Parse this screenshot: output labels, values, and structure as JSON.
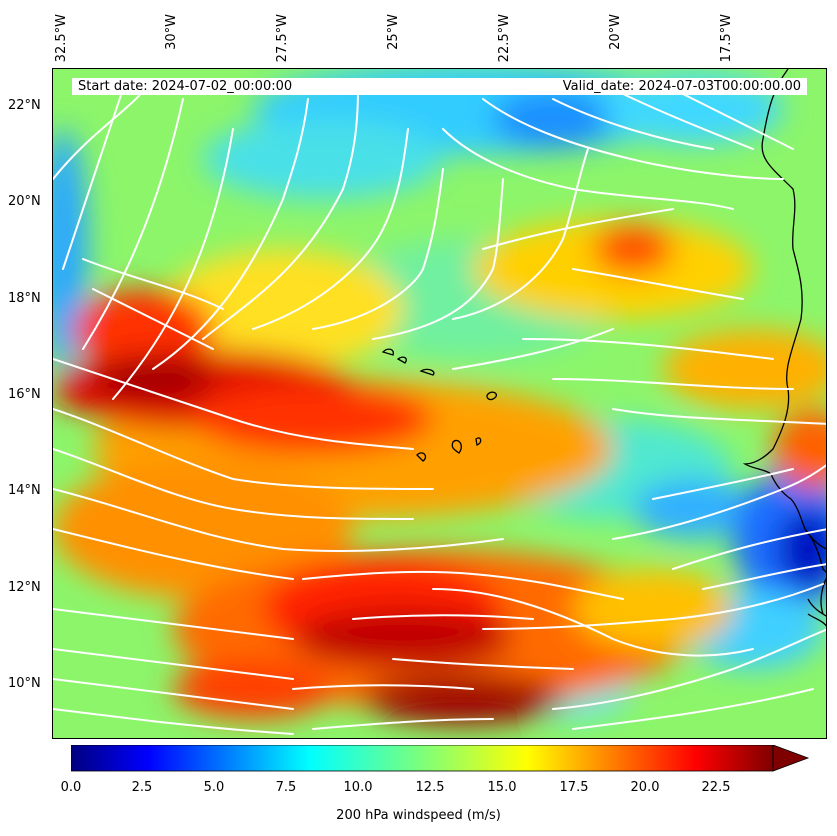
{
  "header": {
    "start_date": "Start date: 2024-07-02_00:00:00",
    "valid_date": "Valid_date: 2024-07-03T00:00:00.00"
  },
  "axes": {
    "longitude_labels": [
      "32.5°W",
      "30°W",
      "27.5°W",
      "25°W",
      "22.5°W",
      "20°W",
      "17.5°W"
    ],
    "latitude_labels": [
      "22°N",
      "20°N",
      "18°N",
      "16°N",
      "14°N",
      "12°N",
      "10°N"
    ]
  },
  "colorbar": {
    "label": "200 hPa windspeed (m/s)",
    "ticks": [
      "0.0",
      "2.5",
      "5.0",
      "7.5",
      "10.0",
      "12.5",
      "15.0",
      "17.5",
      "20.0",
      "22.5"
    ],
    "extend": "max",
    "colormap": "jet"
  },
  "layers": {
    "fill": "200 hPa windspeed contour fill",
    "vectors": "white streamlines",
    "coastline_color": "#000000",
    "streamline_color": "#ffffff"
  }
}
